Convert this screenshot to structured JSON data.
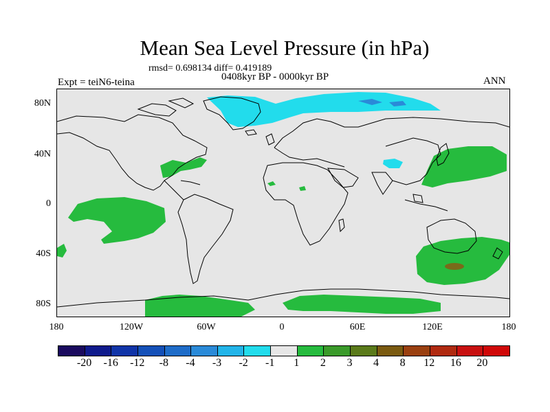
{
  "title": "Mean Sea Level Pressure (in hPa)",
  "stats": "rmsd= 0.698134 diff= 0.419189",
  "period": "0408kyr BP - 0000kyr BP",
  "expt": "Expt = teiN6-teina",
  "season": "ANN",
  "y_axis_labels": [
    "80N",
    "40N",
    "0",
    "40S",
    "80S"
  ],
  "x_axis_labels": [
    "180",
    "120W",
    "60W",
    "0",
    "60E",
    "120E",
    "180"
  ],
  "colorbar": {
    "labels": [
      "-20",
      "-16",
      "-12",
      "-8",
      "-4",
      "-3",
      "-2",
      "-1",
      "1",
      "2",
      "3",
      "4",
      "8",
      "12",
      "16",
      "20"
    ],
    "colors": [
      "#1a0a5e",
      "#0f1a8c",
      "#1034a8",
      "#1450b8",
      "#1e6cc8",
      "#2a8ad8",
      "#22b4e8",
      "#22dcec",
      "#e6e6e6",
      "#26bb3e",
      "#3a9a2a",
      "#5a7a1a",
      "#7a5a10",
      "#9a4010",
      "#b02a10",
      "#c81010",
      "#d00808"
    ]
  },
  "colors": {
    "map_background": "#e6e6e6",
    "negative_anomaly": "#22dcec",
    "negative_anomaly_dark": "#2a8ad8",
    "positive_anomaly": "#26bb3e",
    "positive_anomaly_dark": "#5a7a1a",
    "coastline": "#000000"
  }
}
